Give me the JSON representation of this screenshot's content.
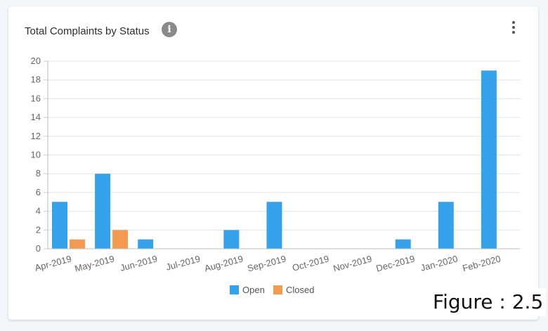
{
  "card": {
    "title": "Total Complaints by Status",
    "info_icon": "info-icon",
    "menu_icon": "more-vertical-icon"
  },
  "figure_label": "Figure : 2.5",
  "chart_data": {
    "type": "bar",
    "categories": [
      "Apr-2019",
      "May-2019",
      "Jun-2019",
      "Jul-2019",
      "Aug-2019",
      "Sep-2019",
      "Oct-2019",
      "Nov-2019",
      "Dec-2019",
      "Jan-2020",
      "Feb-2020"
    ],
    "series": [
      {
        "name": "Open",
        "color": "#36a2eb",
        "values": [
          5,
          8,
          1,
          0,
          2,
          5,
          0,
          0,
          1,
          5,
          19
        ]
      },
      {
        "name": "Closed",
        "color": "#f29b51",
        "values": [
          1,
          2,
          0,
          0,
          0,
          0,
          0,
          0,
          0,
          0,
          0
        ]
      }
    ],
    "title": "Total Complaints by Status",
    "xlabel": "",
    "ylabel": "",
    "ylim": [
      0,
      20
    ],
    "yticks": [
      0,
      2,
      4,
      6,
      8,
      10,
      12,
      14,
      16,
      18,
      20
    ],
    "grid": true,
    "legend_position": "bottom"
  }
}
